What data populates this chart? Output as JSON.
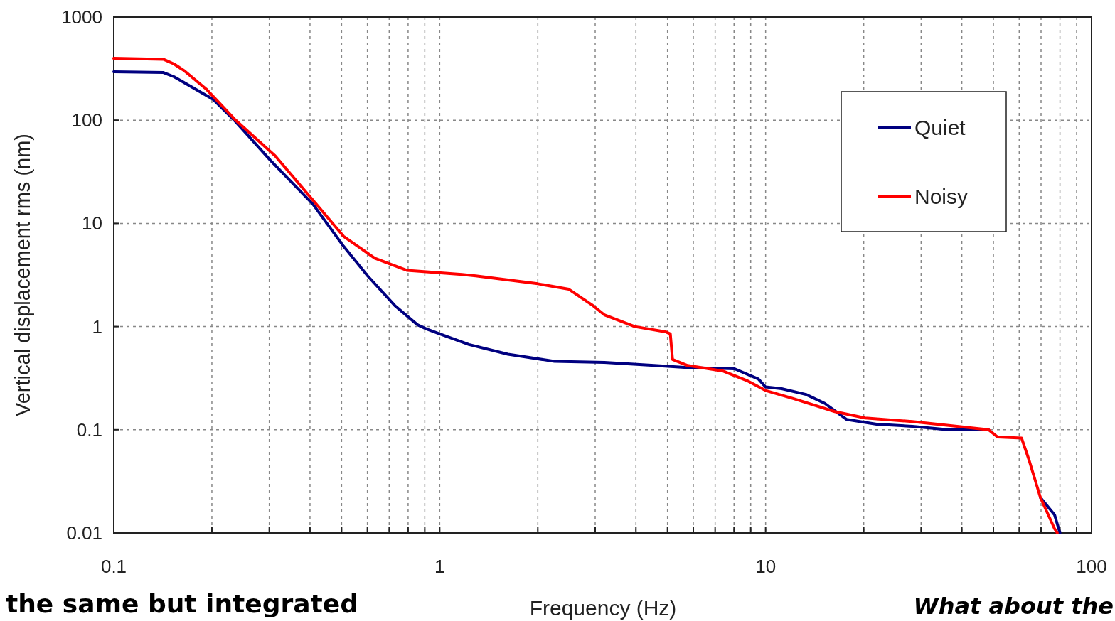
{
  "chart_data": {
    "type": "line",
    "xlabel": "Frequency (Hz)",
    "ylabel": "Vertical displacement rms (nm)",
    "log": "xy",
    "grid": true,
    "legend": "top right",
    "line_style": "solid",
    "marker": "none",
    "xlim": [
      0.1,
      100
    ],
    "ylim": [
      0.01,
      1000
    ],
    "xticks": [
      0.1,
      {
        "value": 0.2,
        "label": null
      },
      {
        "value": 0.3,
        "label": null
      },
      {
        "value": 0.4,
        "label": null
      },
      {
        "value": 0.5,
        "label": null
      },
      {
        "value": 0.6,
        "label": null
      },
      {
        "value": 0.7,
        "label": null
      },
      {
        "value": 0.8,
        "label": null
      },
      {
        "value": 0.9,
        "label": null
      },
      1,
      {
        "value": 2,
        "label": null
      },
      {
        "value": 3,
        "label": null
      },
      {
        "value": 4,
        "label": null
      },
      {
        "value": 5,
        "label": null
      },
      {
        "value": 6,
        "label": null
      },
      {
        "value": 7,
        "label": null
      },
      {
        "value": 8,
        "label": null
      },
      {
        "value": 9,
        "label": null
      },
      10,
      {
        "value": 20,
        "label": null
      },
      {
        "value": 30,
        "label": null
      },
      {
        "value": 40,
        "label": null
      },
      {
        "value": 50,
        "label": null
      },
      {
        "value": 60,
        "label": null
      },
      {
        "value": 70,
        "label": null
      },
      {
        "value": 80,
        "label": null
      },
      {
        "value": 90,
        "label": null
      },
      100
    ],
    "yticks": [
      0.01,
      0.1,
      1,
      10,
      100,
      1000
    ],
    "annotations": [
      "the same but integrated",
      "What about the"
    ],
    "series": [
      {
        "name": "Quiet",
        "color": "#000080",
        "x": [
          0.1,
          0.142,
          0.153,
          0.202,
          0.235,
          0.302,
          0.408,
          0.507,
          0.601,
          0.728,
          0.855,
          0.91,
          1.0,
          1.23,
          1.62,
          2.25,
          3.2,
          4.55,
          5.85,
          8.03,
          9.5,
          10,
          11.2,
          13.3,
          15.2,
          17.7,
          21.9,
          28.2,
          36.3,
          48.3,
          51.5,
          61,
          64.3,
          69.7,
          77,
          80
        ],
        "values": [
          295,
          290,
          264,
          159,
          99,
          41,
          15.4,
          6.0,
          3.1,
          1.6,
          1.04,
          0.95,
          0.85,
          0.67,
          0.54,
          0.46,
          0.45,
          0.42,
          0.4,
          0.39,
          0.31,
          0.26,
          0.25,
          0.22,
          0.18,
          0.126,
          0.113,
          0.108,
          0.1,
          0.1,
          null,
          null,
          null,
          0.022,
          0.015,
          0.01
        ]
      },
      {
        "name": "Noisy",
        "color": "#ff0000",
        "x": [
          0.1,
          0.142,
          0.153,
          0.165,
          0.192,
          0.235,
          0.313,
          0.429,
          0.507,
          0.632,
          0.795,
          0.91,
          1.17,
          1.29,
          2.0,
          2.49,
          2.95,
          3.2,
          3.97,
          4.93,
          5.1,
          5.18,
          5.76,
          7.42,
          8.76,
          10,
          12.2,
          16.3,
          20.2,
          28.2,
          48.3,
          51.5,
          61,
          64.3,
          69.7,
          77,
          78.5
        ],
        "values": [
          398,
          390,
          351,
          300,
          201,
          102,
          45,
          14,
          7.5,
          4.6,
          3.5,
          3.4,
          3.2,
          3.1,
          2.6,
          2.3,
          1.6,
          1.3,
          1.0,
          0.89,
          0.85,
          0.48,
          0.42,
          0.37,
          0.3,
          0.24,
          0.2,
          0.15,
          0.13,
          0.12,
          0.1,
          0.085,
          0.083,
          0.051,
          0.022,
          0.011,
          0.01
        ]
      }
    ]
  }
}
